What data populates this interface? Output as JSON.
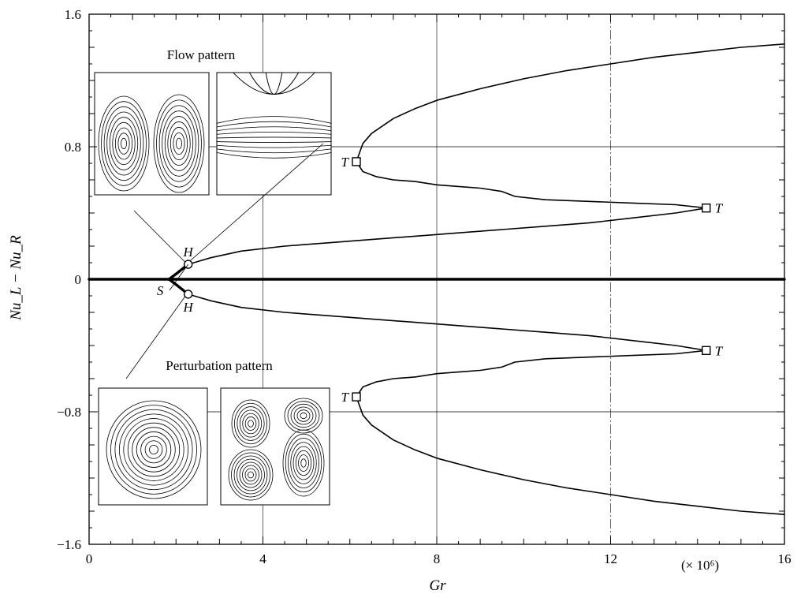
{
  "chart_data": {
    "type": "line",
    "title": "",
    "xlabel": "Gr",
    "ylabel": "Nu_L − Nu_R",
    "xlim": [
      0,
      16
    ],
    "ylim": [
      -1.6,
      1.6
    ],
    "x_scale_note": "(× 10⁶)",
    "x_ticks": [
      "0",
      "4",
      "8",
      "12",
      "16"
    ],
    "y_ticks": [
      "1.6",
      "0.8",
      "0",
      "−0.8",
      "−1.6"
    ],
    "grid": "horizontal at ±0.8; vertical at 4, 8, 12 (12 dash-dotted)",
    "series": [
      {
        "key": "symmetric",
        "style": "thick",
        "x": [
          0,
          2,
          4,
          6,
          8,
          10,
          12,
          14,
          16
        ],
        "y": [
          0,
          0,
          0,
          0,
          0,
          0,
          0,
          0,
          0
        ]
      },
      {
        "key": "upper_stable_thick",
        "style": "thick",
        "x": [
          1.84,
          2.04,
          2.28
        ],
        "y": [
          0.0,
          0.04,
          0.09
        ]
      },
      {
        "key": "lower_stable_thick",
        "style": "thick",
        "x": [
          1.84,
          2.04,
          2.28
        ],
        "y": [
          0.0,
          -0.04,
          -0.09
        ]
      },
      {
        "key": "upper_branch_lower",
        "style": "thin",
        "x": [
          2.28,
          2.8,
          3.5,
          4.5,
          5.5,
          6.5,
          7.5,
          8.5,
          9.5,
          10.5,
          11.5,
          12.5,
          13.5,
          14.2
        ],
        "y": [
          0.09,
          0.13,
          0.17,
          0.2,
          0.22,
          0.24,
          0.26,
          0.28,
          0.3,
          0.32,
          0.34,
          0.37,
          0.4,
          0.43
        ]
      },
      {
        "key": "upper_branch_middle",
        "style": "thin",
        "x": [
          14.2,
          13.5,
          12.5,
          11.5,
          10.5,
          9.8,
          9.5,
          9.0,
          8.5,
          8.0,
          7.5,
          7.0,
          6.6,
          6.3,
          6.15
        ],
        "y": [
          0.43,
          0.45,
          0.46,
          0.47,
          0.48,
          0.5,
          0.53,
          0.55,
          0.56,
          0.57,
          0.59,
          0.6,
          0.62,
          0.65,
          0.71
        ]
      },
      {
        "key": "upper_branch_top",
        "style": "thin",
        "x": [
          6.15,
          6.3,
          6.5,
          7.0,
          7.5,
          8.0,
          9.0,
          10.0,
          11.0,
          12.0,
          13.0,
          14.0,
          15.0,
          16.0
        ],
        "y": [
          0.71,
          0.82,
          0.88,
          0.97,
          1.03,
          1.08,
          1.15,
          1.21,
          1.26,
          1.3,
          1.34,
          1.37,
          1.4,
          1.42
        ]
      },
      {
        "key": "lower_branch_upper",
        "style": "thin",
        "x": [
          2.28,
          2.8,
          3.5,
          4.5,
          5.5,
          6.5,
          7.5,
          8.5,
          9.5,
          10.5,
          11.5,
          12.5,
          13.5,
          14.2
        ],
        "y": [
          -0.09,
          -0.13,
          -0.17,
          -0.2,
          -0.22,
          -0.24,
          -0.26,
          -0.28,
          -0.3,
          -0.32,
          -0.34,
          -0.37,
          -0.4,
          -0.43
        ]
      },
      {
        "key": "lower_branch_middle",
        "style": "thin",
        "x": [
          14.2,
          13.5,
          12.5,
          11.5,
          10.5,
          9.8,
          9.5,
          9.0,
          8.5,
          8.0,
          7.5,
          7.0,
          6.6,
          6.3,
          6.15
        ],
        "y": [
          -0.43,
          -0.45,
          -0.46,
          -0.47,
          -0.48,
          -0.5,
          -0.53,
          -0.55,
          -0.56,
          -0.57,
          -0.59,
          -0.6,
          -0.62,
          -0.65,
          -0.71
        ]
      },
      {
        "key": "lower_branch_bottom",
        "style": "thin",
        "x": [
          6.15,
          6.3,
          6.5,
          7.0,
          7.5,
          8.0,
          9.0,
          10.0,
          11.0,
          12.0,
          13.0,
          14.0,
          15.0,
          16.0
        ],
        "y": [
          -0.71,
          -0.82,
          -0.88,
          -0.97,
          -1.03,
          -1.08,
          -1.15,
          -1.21,
          -1.26,
          -1.3,
          -1.34,
          -1.37,
          -1.4,
          -1.42
        ]
      }
    ],
    "markers": [
      {
        "label": "H",
        "shape": "circle",
        "x": 2.28,
        "y": 0.09,
        "label_pos": "above"
      },
      {
        "label": "H",
        "shape": "circle",
        "x": 2.28,
        "y": -0.09,
        "label_pos": "below"
      },
      {
        "label": "S",
        "shape": "none",
        "x": 1.84,
        "y": 0.0,
        "label_pos": "below-left"
      },
      {
        "label": "T",
        "shape": "square",
        "x": 6.15,
        "y": 0.71,
        "label_pos": "left"
      },
      {
        "label": "T",
        "shape": "square",
        "x": 14.2,
        "y": 0.43,
        "label_pos": "right"
      },
      {
        "label": "T",
        "shape": "square",
        "x": 14.2,
        "y": -0.43,
        "label_pos": "right"
      },
      {
        "label": "T",
        "shape": "square",
        "x": 6.15,
        "y": -0.71,
        "label_pos": "left"
      }
    ],
    "annotations": [
      {
        "text": "Flow pattern"
      },
      {
        "text": "Perturbation pattern"
      }
    ]
  }
}
